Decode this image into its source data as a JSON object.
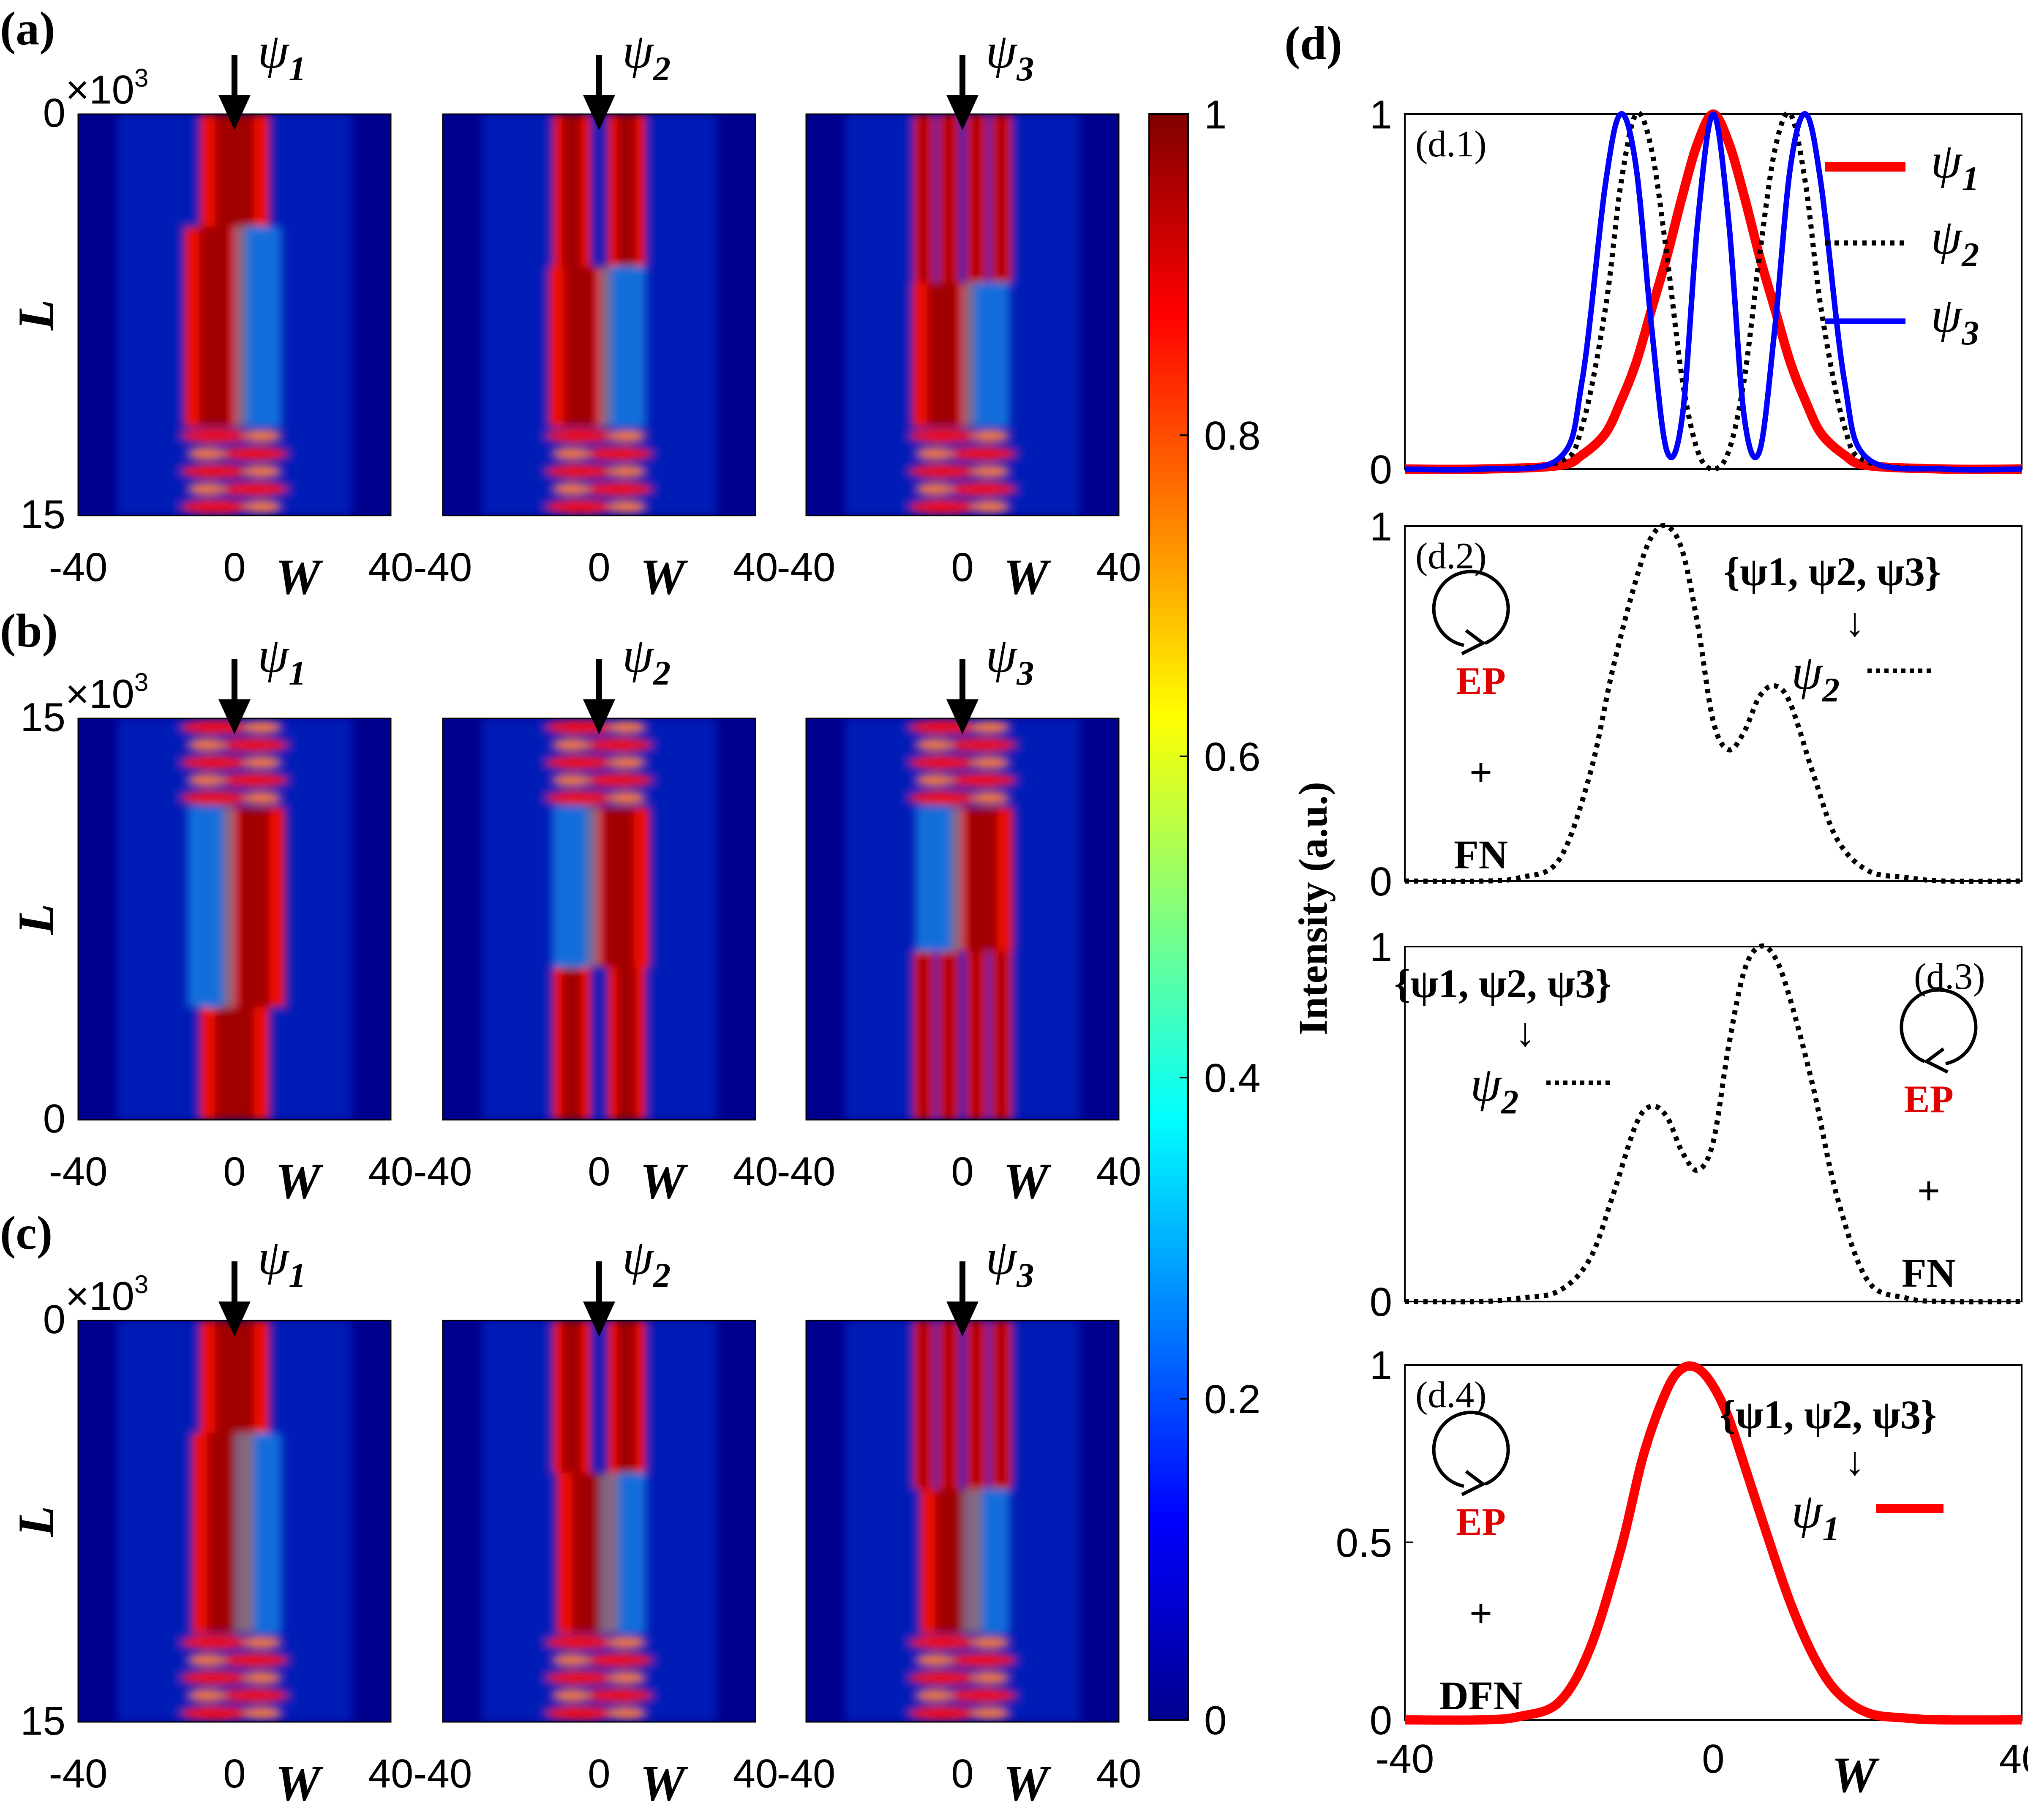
{
  "panel_labels": {
    "a": "(a)",
    "b": "(b)",
    "c": "(c)",
    "d": "(d)"
  },
  "heatmap": {
    "exponent": "×10",
    "exponent_power": "3",
    "y_label": "L",
    "x_label": "W",
    "x_ticks": [
      "-40",
      "0",
      "40"
    ],
    "rows": [
      {
        "y_top": "0",
        "y_bottom": "15"
      },
      {
        "y_top": "15",
        "y_bottom": "0"
      },
      {
        "y_top": "0",
        "y_bottom": "15"
      }
    ],
    "mode_symbol": "ψ",
    "mode_subscripts": [
      "1",
      "2",
      "3"
    ]
  },
  "colorbar": {
    "ticks": [
      "0",
      "0.2",
      "0.4",
      "0.6",
      "0.8",
      "1"
    ]
  },
  "panel_d": {
    "y_label": "Intensity (a.u.)",
    "x_label": "W",
    "x_ticks": [
      "-40",
      "0",
      "40"
    ],
    "subplots": [
      "(d.1)",
      "(d.2)",
      "(d.3)",
      "(d.4)"
    ],
    "d1_y_ticks": [
      "0",
      "1"
    ],
    "d2_y_ticks": [
      "0",
      "1"
    ],
    "d3_y_ticks": [
      "0",
      "1"
    ],
    "d4_y_ticks": [
      "0",
      "0.5",
      "1"
    ],
    "set_text": "{ψ1, ψ2, ψ3}",
    "arrow_glyph": "↓",
    "ep": "EP",
    "plus": "+",
    "fn": "FN",
    "dfn": "DFN"
  },
  "chart_data": [
    {
      "type": "heatmap",
      "title": "",
      "rows": [
        "(a)",
        "(b)",
        "(c)"
      ],
      "columns": [
        "ψ1",
        "ψ2",
        "ψ3"
      ],
      "xlabel": "W",
      "xlim": [
        -40,
        40
      ],
      "ylabel": "L (×10^3)",
      "ylim": [
        0,
        15
      ],
      "colorbar_range": [
        0,
        1
      ],
      "colormap": "jet"
    },
    {
      "type": "line",
      "subplot": "(d.1)",
      "xlim": [
        -40,
        40
      ],
      "ylim": [
        0,
        1
      ],
      "x": [
        -40,
        -30,
        -20,
        -17,
        -14,
        -12,
        -10,
        -8,
        -6,
        -4,
        -2,
        0,
        2,
        4,
        6,
        8,
        10,
        12,
        14,
        17,
        20,
        30,
        40
      ],
      "series": [
        {
          "name": "ψ1",
          "color": "#ff0000",
          "style": "solid",
          "values": [
            0,
            0,
            0.01,
            0.04,
            0.1,
            0.19,
            0.3,
            0.45,
            0.6,
            0.77,
            0.92,
            1,
            0.92,
            0.77,
            0.6,
            0.45,
            0.3,
            0.19,
            0.1,
            0.04,
            0.01,
            0,
            0
          ]
        },
        {
          "name": "ψ2",
          "color": "#000000",
          "style": "dotted",
          "values": [
            0,
            0,
            0.02,
            0.12,
            0.45,
            0.8,
            1,
            0.9,
            0.6,
            0.25,
            0.05,
            0,
            0.05,
            0.25,
            0.6,
            0.9,
            1,
            0.8,
            0.45,
            0.12,
            0.02,
            0,
            0
          ]
        },
        {
          "name": "ψ3",
          "color": "#0000ff",
          "style": "solid",
          "values": [
            0,
            0,
            0.03,
            0.25,
            0.8,
            1,
            0.85,
            0.4,
            0.05,
            0.15,
            0.7,
            1,
            0.7,
            0.15,
            0.05,
            0.4,
            0.85,
            1,
            0.8,
            0.25,
            0.03,
            0,
            0
          ]
        }
      ]
    },
    {
      "type": "line",
      "subplot": "(d.2)",
      "xlim": [
        -40,
        40
      ],
      "ylim": [
        0,
        1
      ],
      "x": [
        -40,
        -30,
        -25,
        -20,
        -16,
        -13,
        -10,
        -8,
        -6,
        -4,
        -2,
        0,
        2,
        4,
        6,
        8,
        10,
        13,
        16,
        20,
        25,
        30,
        40
      ],
      "series": [
        {
          "name": "ψ2",
          "color": "#000000",
          "style": "dotted",
          "values": [
            0,
            0,
            0.01,
            0.06,
            0.3,
            0.6,
            0.85,
            0.97,
            1,
            0.93,
            0.72,
            0.45,
            0.37,
            0.42,
            0.52,
            0.55,
            0.5,
            0.3,
            0.12,
            0.03,
            0.01,
            0,
            0
          ]
        }
      ]
    },
    {
      "type": "line",
      "subplot": "(d.3)",
      "xlim": [
        -40,
        40
      ],
      "ylim": [
        0,
        1
      ],
      "x": [
        -40,
        -30,
        -25,
        -20,
        -16,
        -13,
        -10,
        -8,
        -6,
        -4,
        -2,
        0,
        2,
        4,
        6,
        8,
        10,
        13,
        16,
        20,
        25,
        30,
        40
      ],
      "series": [
        {
          "name": "ψ2",
          "color": "#000000",
          "style": "dotted",
          "values": [
            0,
            0,
            0.01,
            0.03,
            0.12,
            0.3,
            0.5,
            0.55,
            0.52,
            0.42,
            0.37,
            0.45,
            0.72,
            0.93,
            1,
            0.97,
            0.85,
            0.6,
            0.3,
            0.06,
            0.01,
            0,
            0
          ]
        }
      ]
    },
    {
      "type": "line",
      "subplot": "(d.4)",
      "xlim": [
        -40,
        40
      ],
      "ylim": [
        0,
        1
      ],
      "x": [
        -40,
        -30,
        -25,
        -20,
        -16,
        -12,
        -9,
        -6,
        -4,
        -2,
        0,
        2,
        4,
        7,
        10,
        13,
        16,
        20,
        25,
        30,
        40
      ],
      "series": [
        {
          "name": "ψ1",
          "color": "#ff0000",
          "style": "solid",
          "values": [
            0,
            0,
            0.01,
            0.05,
            0.2,
            0.48,
            0.75,
            0.93,
            0.99,
            0.99,
            0.94,
            0.85,
            0.72,
            0.52,
            0.33,
            0.18,
            0.08,
            0.02,
            0.005,
            0,
            0
          ]
        }
      ]
    }
  ]
}
